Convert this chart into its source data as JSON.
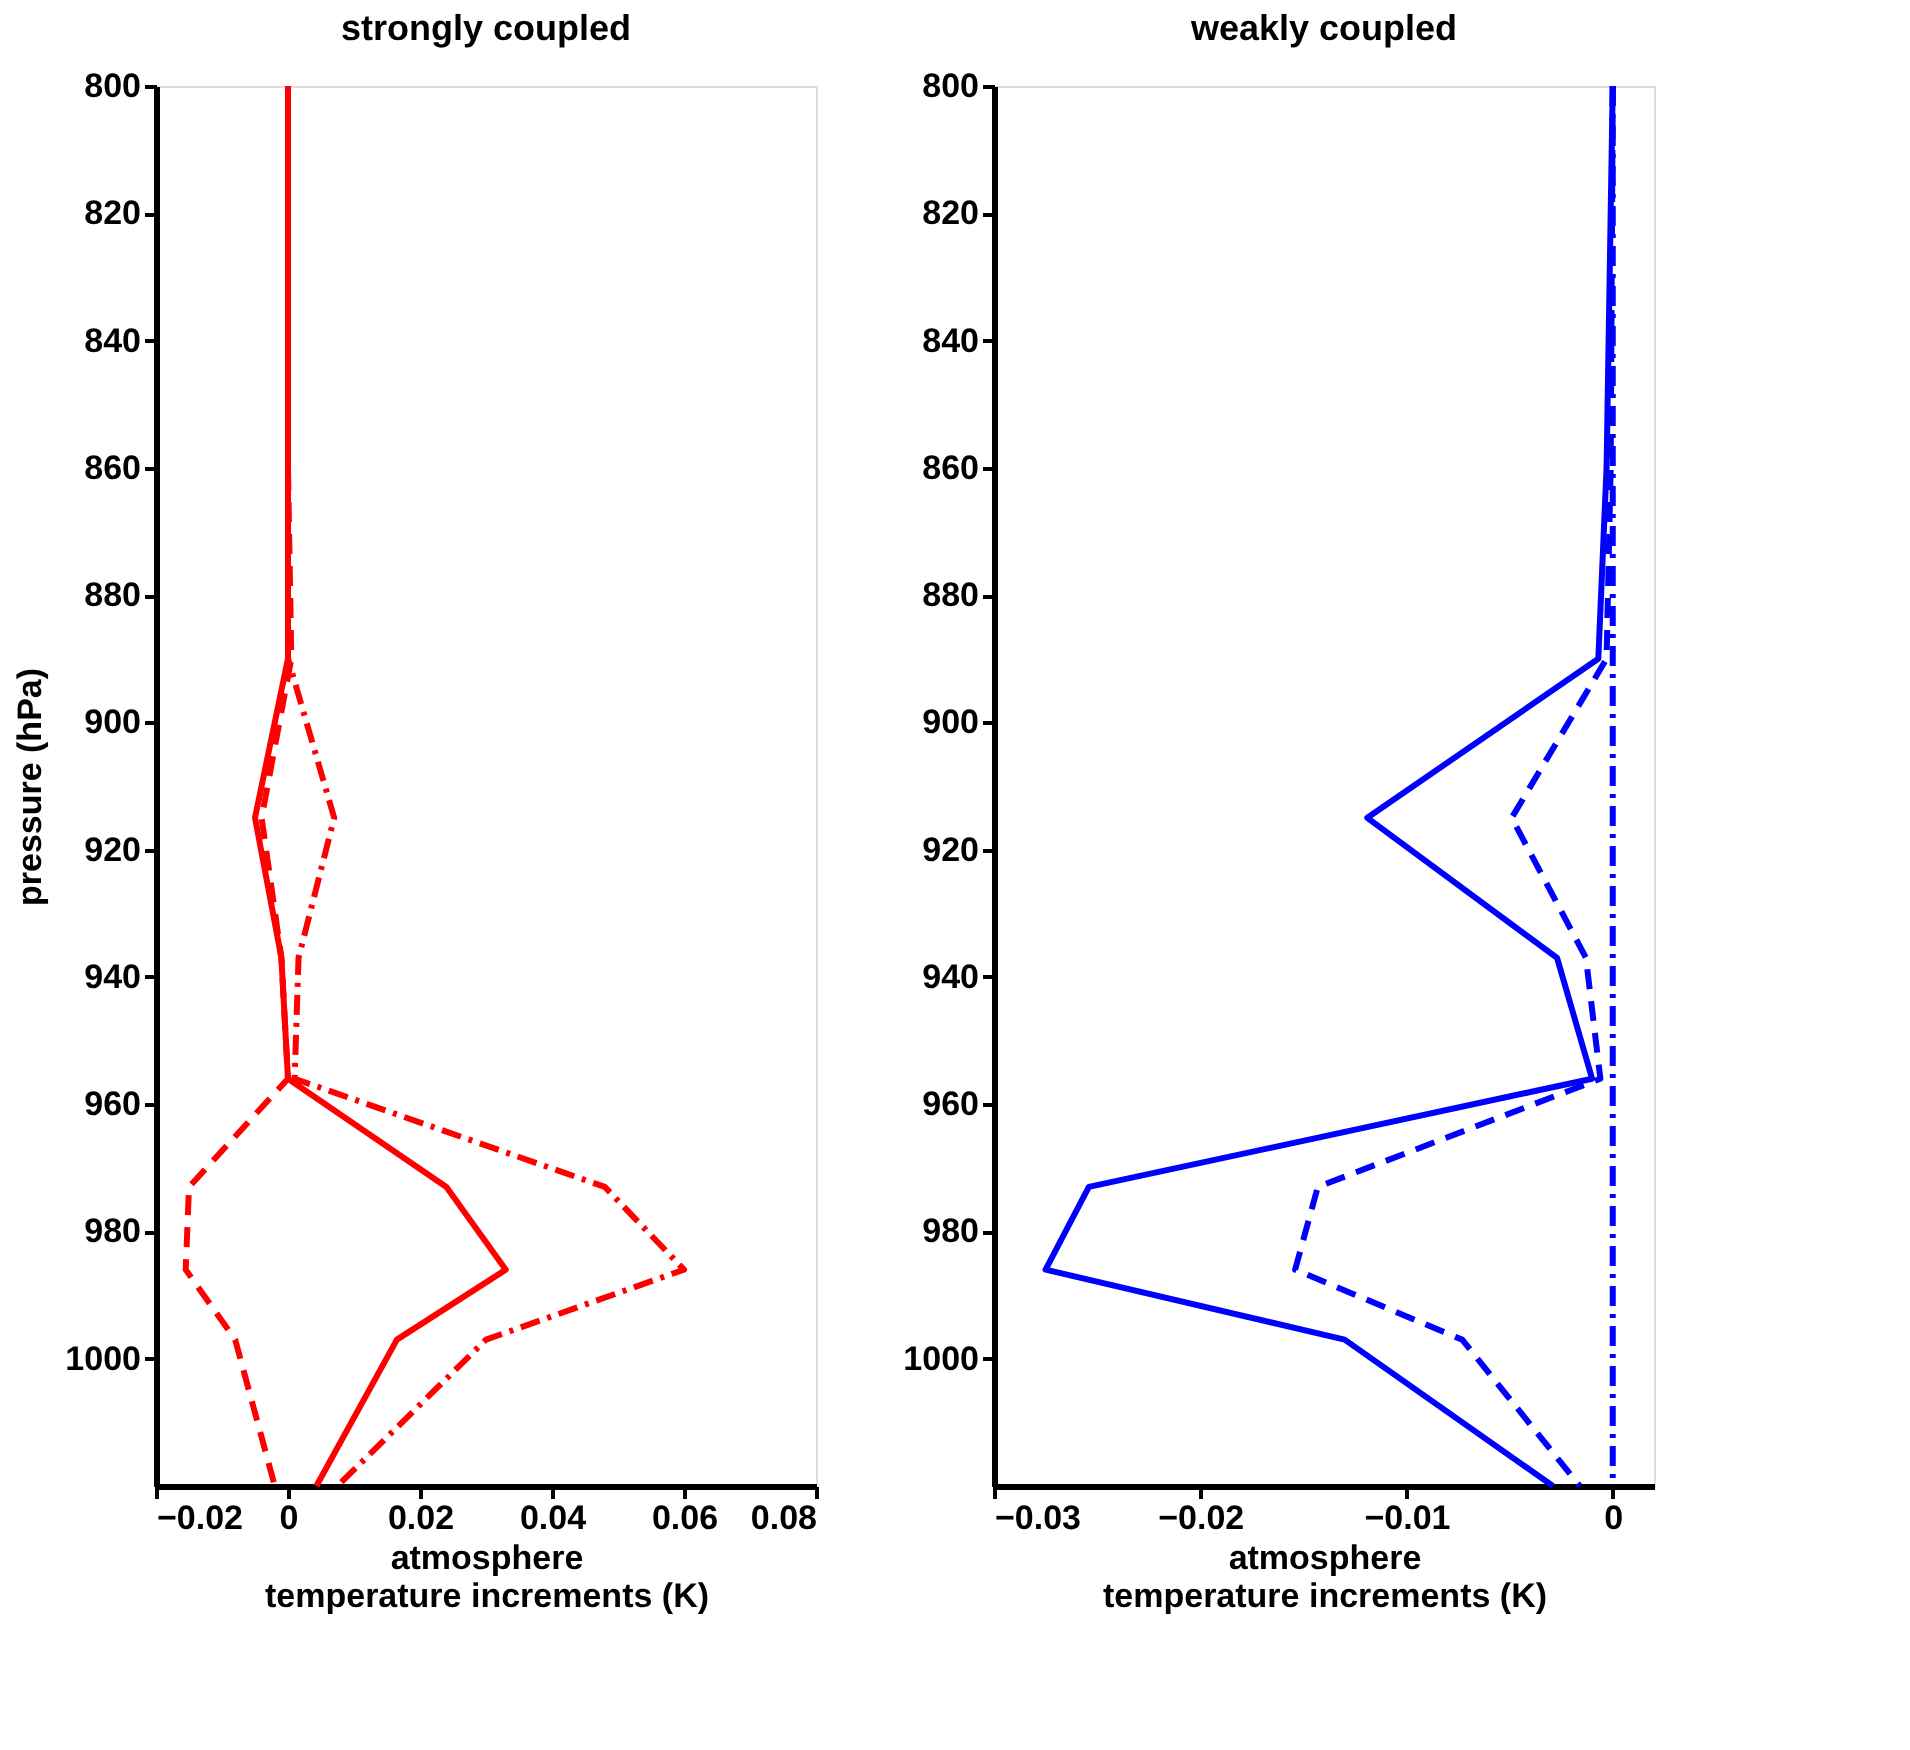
{
  "chart_data": [
    {
      "type": "line",
      "title": "strongly coupled",
      "orientation": "horizontal",
      "xlabel": "atmosphere\ntemperature increments (K)",
      "ylabel": "pressure (hPa)",
      "x": [
        800,
        860,
        890,
        915,
        937,
        956,
        973,
        986,
        997,
        1020
      ],
      "series": [
        {
          "color": "#ff0000",
          "line_style": "solid",
          "values": [
            0,
            0,
            0,
            -0.005,
            -0.001,
            0,
            0.024,
            0.033,
            0.0165,
            0.0043
          ]
        },
        {
          "color": "#ff0000",
          "line_style": "dashed",
          "values": [
            0,
            0,
            0.0005,
            -0.004,
            -0.001,
            0,
            -0.015,
            -0.0155,
            -0.008,
            -0.002
          ]
        },
        {
          "color": "#ff0000",
          "line_style": "dashdot",
          "values": [
            0,
            0,
            0,
            0.007,
            0.0016,
            0.001,
            0.048,
            0.06,
            0.03,
            0.0075
          ]
        }
      ],
      "xlim": [
        -0.02,
        0.08
      ],
      "xticks": [
        -0.02,
        0,
        0.02,
        0.04,
        0.06,
        0.08
      ],
      "ylim": [
        1020,
        800
      ],
      "yticks": [
        800,
        820,
        840,
        860,
        880,
        900,
        920,
        940,
        960,
        980,
        1000
      ],
      "grid": false
    },
    {
      "type": "line",
      "title": "weakly coupled",
      "orientation": "horizontal",
      "xlabel": "atmosphere\ntemperature increments (K)",
      "x": [
        800,
        860,
        890,
        915,
        937,
        956,
        973,
        986,
        997,
        1020
      ],
      "series": [
        {
          "color": "#0000ff",
          "line_style": "solid",
          "values": [
            0,
            -0.0003,
            -0.0007,
            -0.0119,
            -0.0027,
            -0.001,
            -0.0254,
            -0.0275,
            -0.013,
            -0.0029
          ]
        },
        {
          "color": "#0000ff",
          "line_style": "dashed",
          "values": [
            0,
            -0.0001,
            -0.0003,
            -0.0049,
            -0.0013,
            -0.0006,
            -0.0143,
            -0.0154,
            -0.0073,
            -0.0016
          ]
        },
        {
          "color": "#0000ff",
          "line_style": "dashdot",
          "values": [
            0,
            0,
            0,
            0,
            0,
            0,
            0,
            0,
            0,
            0
          ]
        }
      ],
      "xlim": [
        -0.03,
        0.002
      ],
      "xticks": [
        -0.03,
        -0.02,
        -0.01,
        0
      ],
      "ylim": [
        1020,
        800
      ],
      "yticks": [
        800,
        820,
        840,
        860,
        880,
        900,
        920,
        940,
        960,
        980,
        1000
      ],
      "grid": false
    }
  ]
}
